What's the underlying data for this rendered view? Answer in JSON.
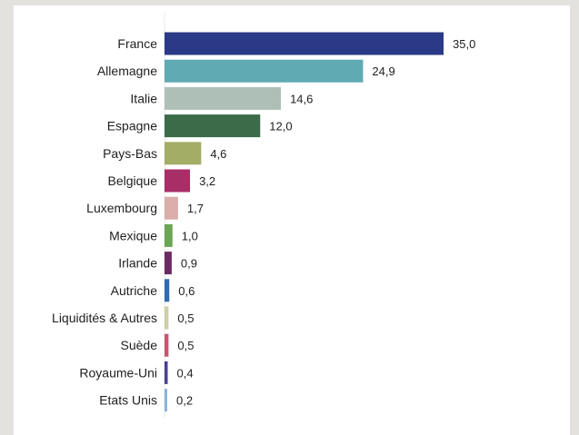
{
  "chart_data": {
    "type": "bar",
    "orientation": "horizontal",
    "title": "",
    "xlabel": "",
    "ylabel": "",
    "xlim": [
      0,
      35
    ],
    "grid": false,
    "legend": "none",
    "categories": [
      "France",
      "Allemagne",
      "Italie",
      "Espagne",
      "Pays-Bas",
      "Belgique",
      "Luxembourg",
      "Mexique",
      "Irlande",
      "Autriche",
      "Liquidités & Autres",
      "Suède",
      "Royaume-Uni",
      "Etats Unis"
    ],
    "values": [
      35.0,
      24.9,
      14.6,
      12.0,
      4.6,
      3.2,
      1.7,
      1.0,
      0.9,
      0.6,
      0.5,
      0.5,
      0.4,
      0.2
    ],
    "value_labels": [
      "35,0",
      "24,9",
      "14,6",
      "12,0",
      "4,6",
      "3,2",
      "1,7",
      "1,0",
      "0,9",
      "0,6",
      "0,5",
      "0,5",
      "0,4",
      "0,2"
    ],
    "colors": [
      "#2b3a87",
      "#5faab3",
      "#aebfb7",
      "#3c6b4a",
      "#a3ad66",
      "#a82e68",
      "#d9aeaa",
      "#6aa653",
      "#6b2a60",
      "#2f6db3",
      "#cfcfa6",
      "#c8566f",
      "#4a3f93",
      "#8fb3db"
    ]
  }
}
